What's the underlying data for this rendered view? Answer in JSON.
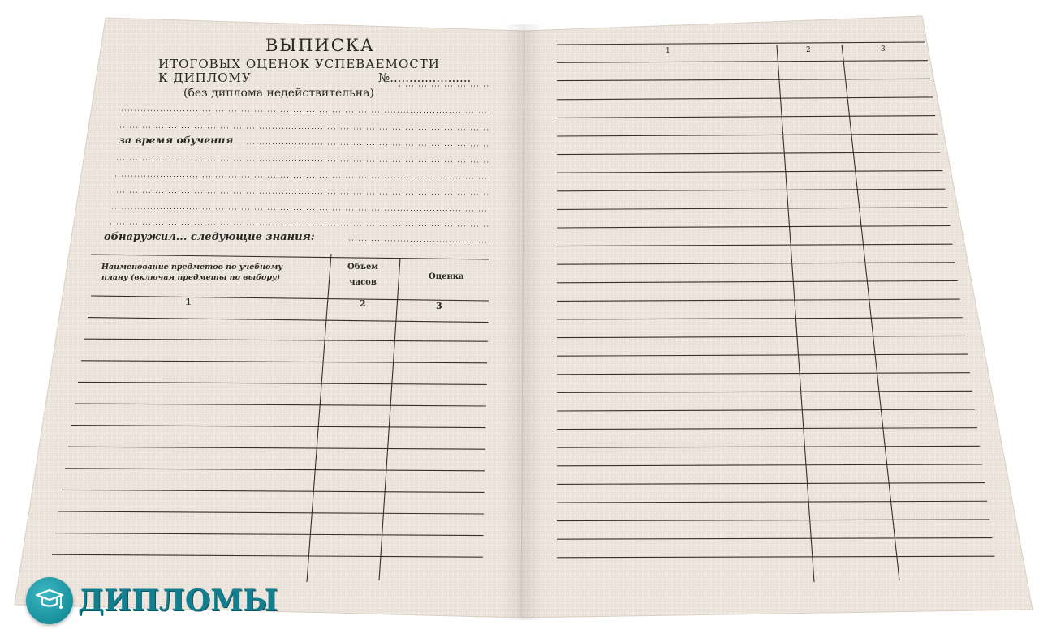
{
  "left_page": {
    "title": "ВЫПИСКА",
    "subtitle_line1": "ИТОГОВЫХ  ОЦЕНОК  УСПЕВАЕМОСТИ",
    "subtitle_line2": "К ДИПЛОМУ",
    "number_label": "№.....................",
    "note": "(без диплома  недействительна)",
    "during_label": "за  время обучения",
    "found_label": "обнаружил...  следующие  знания:",
    "table": {
      "headers": [
        "Наименование предметов по учебному\nплану (включая предметы по выбору)",
        "Объем\nчасов",
        "Оценка"
      ],
      "column_numbers": [
        "1",
        "2",
        "3"
      ]
    }
  },
  "right_page": {
    "column_numbers": [
      "1",
      "2",
      "3"
    ]
  },
  "logo": {
    "text": "ДИПЛОМЫ",
    "icon": "graduation-cap-icon",
    "color": "#137f8e"
  },
  "colors": {
    "paper": "#f1ebe4",
    "ink": "#3a2e2a"
  }
}
